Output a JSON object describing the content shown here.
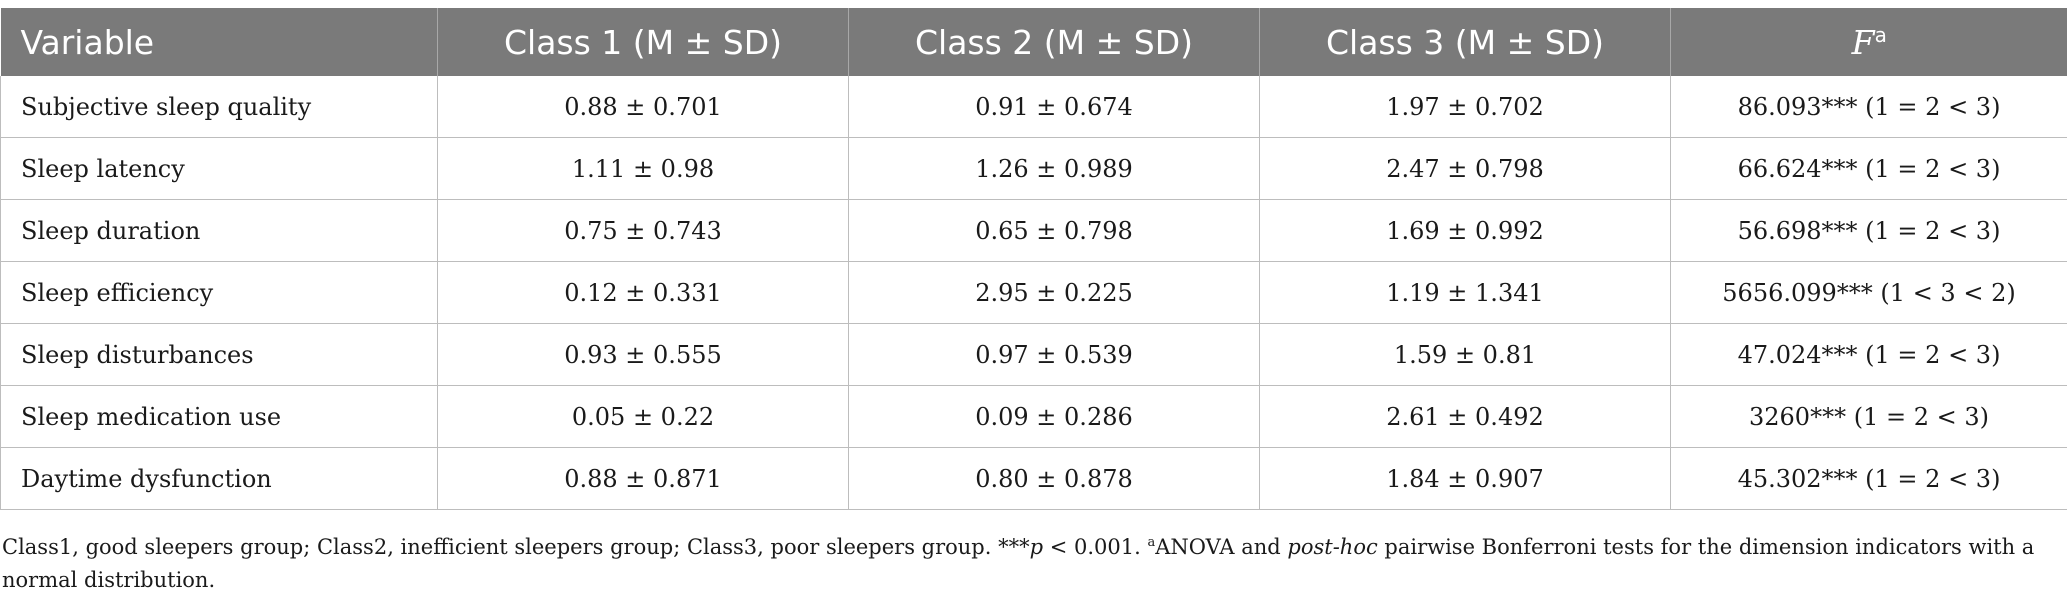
{
  "table": {
    "headers": [
      "Variable",
      "Class 1 (M ± SD)",
      "Class 2 (M ± SD)",
      "Class 3 (M ± SD)"
    ],
    "f_header": {
      "symbol": "F",
      "superscript": "a"
    },
    "rows": [
      [
        "Subjective sleep quality",
        "0.88 ± 0.701",
        "0.91 ± 0.674",
        "1.97 ± 0.702",
        "86.093*** (1 = 2 < 3)"
      ],
      [
        "Sleep latency",
        "1.11 ± 0.98",
        "1.26 ± 0.989",
        "2.47 ± 0.798",
        "66.624*** (1 = 2 < 3)"
      ],
      [
        "Sleep duration",
        "0.75 ± 0.743",
        "0.65 ± 0.798",
        "1.69 ± 0.992",
        "56.698*** (1 = 2 < 3)"
      ],
      [
        "Sleep efficiency",
        "0.12 ± 0.331",
        "2.95 ± 0.225",
        "1.19 ± 1.341",
        "5656.099*** (1 < 3 < 2)"
      ],
      [
        "Sleep disturbances",
        "0.93 ± 0.555",
        "0.97 ± 0.539",
        "1.59 ± 0.81",
        "47.024*** (1 = 2 < 3)"
      ],
      [
        "Sleep medication use",
        "0.05 ± 0.22",
        "0.09 ± 0.286",
        "2.61 ± 0.492",
        "3260*** (1 = 2 < 3)"
      ],
      [
        "Daytime dysfunction",
        "0.88 ± 0.871",
        "0.80 ± 0.878",
        "1.84 ± 0.907",
        "45.302*** (1 = 2 < 3)"
      ]
    ]
  },
  "footnote": {
    "part1": "Class1, good sleepers group; Class2, inefficient sleepers group; Class3, poor sleepers group. ***",
    "p_symbol": "p",
    "part2": " < 0.001. ",
    "sup": "a",
    "part3": "ANOVA and ",
    "post_hoc": "post-hoc",
    "part4": " pairwise Bonferroni tests for the dimension indicators with a normal distribution."
  }
}
